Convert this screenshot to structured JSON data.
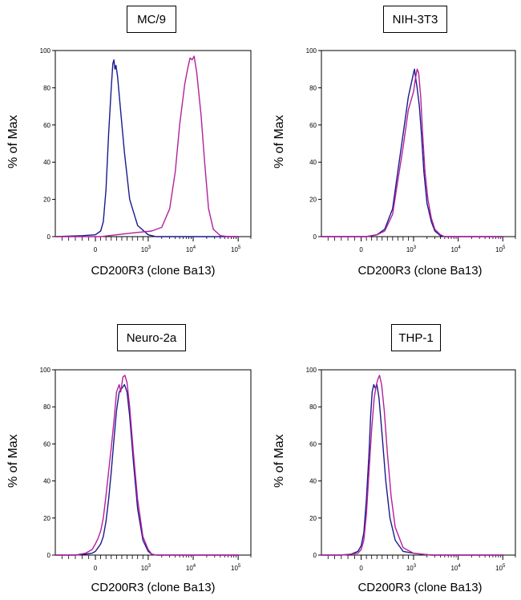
{
  "chart_data": [
    {
      "type": "line",
      "title": "MC/9",
      "xlabel": "CD200R3 (clone Ba13)",
      "ylabel": "% of Max",
      "x_scale": "logicle",
      "ylim": [
        0,
        100
      ],
      "yticks": [
        "0",
        "20",
        "40",
        "60",
        "80",
        "100"
      ],
      "xticks": [
        {
          "base": "0",
          "exp": ""
        },
        {
          "base": "10",
          "exp": "3"
        },
        {
          "base": "10",
          "exp": "4"
        },
        {
          "base": "10",
          "exp": "5"
        }
      ],
      "grid": false,
      "series": [
        {
          "color": "#1a1a8c",
          "points": [
            [
              -600,
              0
            ],
            [
              -200,
              0.5
            ],
            [
              0,
              1
            ],
            [
              100,
              3
            ],
            [
              150,
              8
            ],
            [
              200,
              25
            ],
            [
              250,
              55
            ],
            [
              300,
              80
            ],
            [
              330,
              93
            ],
            [
              350,
              95
            ],
            [
              370,
              90
            ],
            [
              390,
              92
            ],
            [
              420,
              86
            ],
            [
              470,
              70
            ],
            [
              550,
              45
            ],
            [
              650,
              20
            ],
            [
              800,
              6
            ],
            [
              1000,
              1
            ],
            [
              1500,
              0
            ],
            [
              100000,
              0
            ]
          ]
        },
        {
          "color": "#b3209b",
          "points": [
            [
              -600,
              0
            ],
            [
              100,
              0
            ],
            [
              400,
              1
            ],
            [
              700,
              2
            ],
            [
              1200,
              3
            ],
            [
              2000,
              5
            ],
            [
              3000,
              15
            ],
            [
              4000,
              35
            ],
            [
              5000,
              60
            ],
            [
              6500,
              82
            ],
            [
              7500,
              90
            ],
            [
              8500,
              96
            ],
            [
              9500,
              95
            ],
            [
              10500,
              97
            ],
            [
              12000,
              88
            ],
            [
              15000,
              65
            ],
            [
              18000,
              40
            ],
            [
              22000,
              15
            ],
            [
              28000,
              4
            ],
            [
              40000,
              0.5
            ],
            [
              60000,
              0
            ],
            [
              100000,
              0
            ]
          ]
        }
      ]
    },
    {
      "type": "line",
      "title": "NIH-3T3",
      "xlabel": "CD200R3 (clone Ba13)",
      "ylabel": "% of Max",
      "x_scale": "logicle",
      "ylim": [
        0,
        100
      ],
      "yticks": [
        "0",
        "20",
        "40",
        "60",
        "80",
        "100"
      ],
      "xticks": [
        {
          "base": "0",
          "exp": ""
        },
        {
          "base": "10",
          "exp": "3"
        },
        {
          "base": "10",
          "exp": "4"
        },
        {
          "base": "10",
          "exp": "5"
        }
      ],
      "grid": false,
      "series": [
        {
          "color": "#1a1a8c",
          "points": [
            [
              -600,
              0
            ],
            [
              100,
              0
            ],
            [
              300,
              1
            ],
            [
              450,
              4
            ],
            [
              600,
              15
            ],
            [
              700,
              35
            ],
            [
              800,
              55
            ],
            [
              900,
              75
            ],
            [
              1000,
              88
            ],
            [
              1050,
              90
            ],
            [
              1100,
              86
            ],
            [
              1200,
              80
            ],
            [
              1350,
              70
            ],
            [
              1500,
              55
            ],
            [
              1700,
              35
            ],
            [
              2000,
              18
            ],
            [
              2500,
              8
            ],
            [
              3000,
              3
            ],
            [
              4000,
              0.5
            ],
            [
              5000,
              0
            ],
            [
              100000,
              0
            ]
          ]
        },
        {
          "color": "#b3209b",
          "points": [
            [
              -600,
              0
            ],
            [
              100,
              0
            ],
            [
              300,
              1
            ],
            [
              450,
              3
            ],
            [
              600,
              12
            ],
            [
              700,
              30
            ],
            [
              800,
              48
            ],
            [
              900,
              68
            ],
            [
              1000,
              78
            ],
            [
              1100,
              85
            ],
            [
              1200,
              90
            ],
            [
              1300,
              88
            ],
            [
              1450,
              75
            ],
            [
              1600,
              55
            ],
            [
              1800,
              35
            ],
            [
              2100,
              20
            ],
            [
              2500,
              10
            ],
            [
              3000,
              4
            ],
            [
              4000,
              1
            ],
            [
              5000,
              0
            ],
            [
              100000,
              0
            ]
          ]
        }
      ]
    },
    {
      "type": "line",
      "title": "Neuro-2a",
      "xlabel": "CD200R3 (clone Ba13)",
      "ylabel": "% of Max",
      "x_scale": "logicle",
      "ylim": [
        0,
        100
      ],
      "yticks": [
        "0",
        "20",
        "40",
        "60",
        "80",
        "100"
      ],
      "xticks": [
        {
          "base": "0",
          "exp": ""
        },
        {
          "base": "10",
          "exp": "3"
        },
        {
          "base": "10",
          "exp": "4"
        },
        {
          "base": "10",
          "exp": "5"
        }
      ],
      "grid": false,
      "series": [
        {
          "color": "#1a1a8c",
          "points": [
            [
              -600,
              0
            ],
            [
              -300,
              0
            ],
            [
              -150,
              0.5
            ],
            [
              -50,
              1
            ],
            [
              0,
              2
            ],
            [
              50,
              4
            ],
            [
              100,
              6
            ],
            [
              150,
              10
            ],
            [
              200,
              18
            ],
            [
              250,
              30
            ],
            [
              300,
              45
            ],
            [
              350,
              62
            ],
            [
              400,
              78
            ],
            [
              450,
              88
            ],
            [
              500,
              90
            ],
            [
              550,
              92
            ],
            [
              600,
              88
            ],
            [
              650,
              75
            ],
            [
              720,
              50
            ],
            [
              800,
              25
            ],
            [
              900,
              8
            ],
            [
              1000,
              2
            ],
            [
              1200,
              0.5
            ],
            [
              1500,
              0
            ],
            [
              100000,
              0
            ]
          ]
        },
        {
          "color": "#b3209b",
          "points": [
            [
              -600,
              0
            ],
            [
              -300,
              0
            ],
            [
              -150,
              1
            ],
            [
              -50,
              3
            ],
            [
              0,
              6
            ],
            [
              50,
              9
            ],
            [
              100,
              13
            ],
            [
              150,
              20
            ],
            [
              200,
              32
            ],
            [
              250,
              45
            ],
            [
              300,
              58
            ],
            [
              350,
              72
            ],
            [
              400,
              88
            ],
            [
              450,
              92
            ],
            [
              480,
              88
            ],
            [
              520,
              96
            ],
            [
              560,
              97
            ],
            [
              600,
              93
            ],
            [
              650,
              80
            ],
            [
              720,
              55
            ],
            [
              800,
              30
            ],
            [
              900,
              10
            ],
            [
              1000,
              3
            ],
            [
              1200,
              0.5
            ],
            [
              1500,
              0
            ],
            [
              100000,
              0
            ]
          ]
        }
      ]
    },
    {
      "type": "line",
      "title": "THP-1",
      "xlabel": "CD200R3 (clone Ba13)",
      "ylabel": "% of Max",
      "x_scale": "logicle",
      "ylim": [
        0,
        100
      ],
      "yticks": [
        "0",
        "20",
        "40",
        "60",
        "80",
        "100"
      ],
      "xticks": [
        {
          "base": "0",
          "exp": ""
        },
        {
          "base": "10",
          "exp": "3"
        },
        {
          "base": "10",
          "exp": "4"
        },
        {
          "base": "10",
          "exp": "5"
        }
      ],
      "grid": false,
      "series": [
        {
          "color": "#1a1a8c",
          "points": [
            [
              -600,
              0
            ],
            [
              -300,
              0
            ],
            [
              -150,
              0.5
            ],
            [
              -50,
              2
            ],
            [
              0,
              5
            ],
            [
              50,
              12
            ],
            [
              100,
              30
            ],
            [
              150,
              55
            ],
            [
              180,
              75
            ],
            [
              210,
              88
            ],
            [
              240,
              92
            ],
            [
              270,
              90
            ],
            [
              300,
              92
            ],
            [
              340,
              85
            ],
            [
              400,
              65
            ],
            [
              470,
              40
            ],
            [
              550,
              20
            ],
            [
              650,
              8
            ],
            [
              800,
              2
            ],
            [
              1000,
              1
            ],
            [
              1500,
              0.5
            ],
            [
              2500,
              0
            ],
            [
              100000,
              0
            ]
          ]
        },
        {
          "color": "#b3209b",
          "points": [
            [
              -600,
              0
            ],
            [
              -300,
              0
            ],
            [
              -150,
              0.5
            ],
            [
              -50,
              1
            ],
            [
              0,
              3
            ],
            [
              50,
              8
            ],
            [
              100,
              22
            ],
            [
              150,
              45
            ],
            [
              200,
              68
            ],
            [
              250,
              85
            ],
            [
              290,
              92
            ],
            [
              320,
              95
            ],
            [
              350,
              97
            ],
            [
              390,
              92
            ],
            [
              440,
              78
            ],
            [
              500,
              55
            ],
            [
              570,
              32
            ],
            [
              650,
              15
            ],
            [
              800,
              4
            ],
            [
              1000,
              1
            ],
            [
              1500,
              0.5
            ],
            [
              2500,
              0
            ],
            [
              100000,
              0
            ]
          ]
        }
      ]
    }
  ]
}
